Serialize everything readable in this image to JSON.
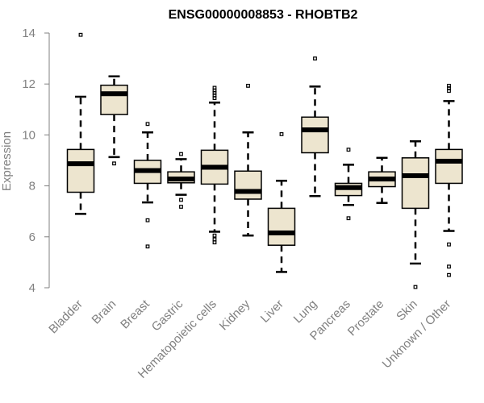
{
  "chart_data": {
    "type": "boxplot",
    "title": "ENSG00000008853 - RHOBTB2",
    "xlabel": "",
    "ylabel": "Expression",
    "ylim": [
      4,
      14
    ],
    "yticks": [
      4,
      6,
      8,
      10,
      12,
      14
    ],
    "ytick_labels": [
      "4",
      "6",
      "8",
      "10",
      "12",
      "14"
    ],
    "categories": [
      "Bladder",
      "Brain",
      "Breast",
      "Gastric",
      "Hematopoietic cells",
      "Kidney",
      "Liver",
      "Lung",
      "Pancreas",
      "Prostate",
      "Skin",
      "Unknown / Other"
    ],
    "box_fill": "#ede5cf",
    "median_color": "#000000",
    "boxes": [
      {
        "q1": 7.75,
        "median": 8.87,
        "q3": 9.43,
        "whisker_low": 6.9,
        "whisker_high": 11.5,
        "outliers": [
          13.93
        ]
      },
      {
        "q1": 10.8,
        "median": 11.62,
        "q3": 11.95,
        "whisker_low": 9.13,
        "whisker_high": 12.3,
        "outliers": [
          8.88
        ]
      },
      {
        "q1": 8.1,
        "median": 8.6,
        "q3": 9.0,
        "whisker_low": 7.35,
        "whisker_high": 10.1,
        "outliers": [
          10.43,
          6.65,
          5.62
        ]
      },
      {
        "q1": 8.12,
        "median": 8.27,
        "q3": 8.55,
        "whisker_low": 7.65,
        "whisker_high": 9.05,
        "outliers": [
          9.25,
          7.45,
          7.18
        ]
      },
      {
        "q1": 8.07,
        "median": 8.73,
        "q3": 9.4,
        "whisker_low": 6.2,
        "whisker_high": 11.27,
        "outliers": [
          11.85,
          11.75,
          11.65,
          11.55,
          11.45,
          6.05,
          5.9,
          5.78
        ]
      },
      {
        "q1": 7.48,
        "median": 7.78,
        "q3": 8.58,
        "whisker_low": 6.05,
        "whisker_high": 10.1,
        "outliers": [
          11.93
        ]
      },
      {
        "q1": 5.67,
        "median": 6.15,
        "q3": 7.12,
        "whisker_low": 4.62,
        "whisker_high": 8.2,
        "outliers": [
          10.03
        ]
      },
      {
        "q1": 9.3,
        "median": 10.2,
        "q3": 10.7,
        "whisker_low": 7.6,
        "whisker_high": 11.9,
        "outliers": [
          13.0
        ]
      },
      {
        "q1": 7.62,
        "median": 7.93,
        "q3": 8.1,
        "whisker_low": 7.25,
        "whisker_high": 8.83,
        "outliers": [
          9.42,
          6.73
        ]
      },
      {
        "q1": 7.97,
        "median": 8.27,
        "q3": 8.55,
        "whisker_low": 7.33,
        "whisker_high": 9.1,
        "outliers": []
      },
      {
        "q1": 7.12,
        "median": 8.4,
        "q3": 9.1,
        "whisker_low": 4.95,
        "whisker_high": 9.75,
        "outliers": [
          4.03
        ]
      },
      {
        "q1": 8.1,
        "median": 8.97,
        "q3": 9.43,
        "whisker_low": 6.23,
        "whisker_high": 11.33,
        "outliers": [
          11.93,
          11.83,
          11.73,
          5.7,
          4.83,
          4.5
        ]
      }
    ]
  }
}
